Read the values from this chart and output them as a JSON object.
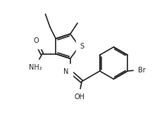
{
  "bg_color": "#ffffff",
  "line_color": "#222222",
  "line_width": 1.2,
  "font_size": 7.0,
  "figsize": [
    2.23,
    1.75
  ],
  "dpi": 100,
  "xlim": [
    0,
    10
  ],
  "ylim": [
    0,
    8
  ]
}
